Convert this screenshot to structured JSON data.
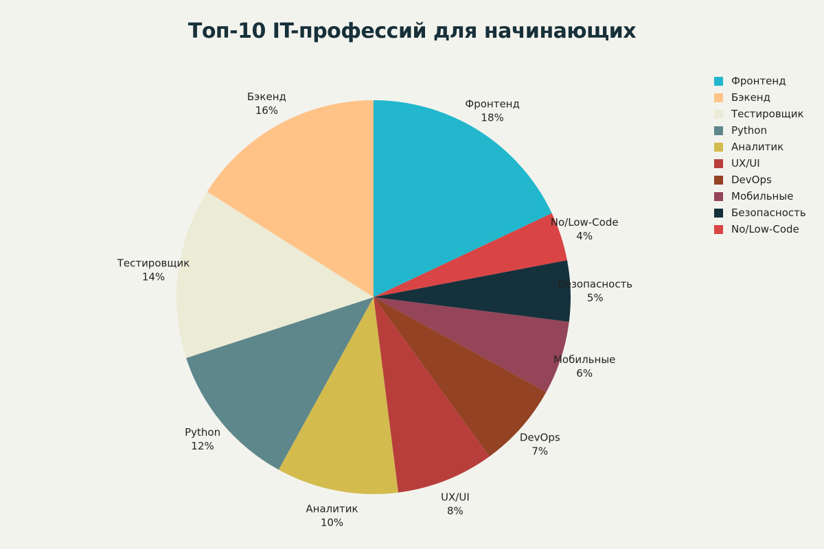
{
  "chart_data": {
    "type": "pie",
    "title": "Топ-10 IT-профессий для начинающих",
    "legend_position": "right",
    "slices": [
      {
        "label": "Фронтенд",
        "value": 18,
        "value_label": "18%",
        "color": "#22b7cd"
      },
      {
        "label": "No/Low-Code",
        "value": 4,
        "value_label": "4%",
        "color": "#d94545"
      },
      {
        "label": "Безопасность",
        "value": 5,
        "value_label": "5%",
        "color": "#15313b"
      },
      {
        "label": "Мобильные",
        "value": 6,
        "value_label": "6%",
        "color": "#944558"
      },
      {
        "label": "DevOps",
        "value": 7,
        "value_label": "7%",
        "color": "#944224"
      },
      {
        "label": "UX/UI",
        "value": 8,
        "value_label": "8%",
        "color": "#b83e3c"
      },
      {
        "label": "Аналитик",
        "value": 10,
        "value_label": "10%",
        "color": "#d3bb4e"
      },
      {
        "label": "Python",
        "value": 12,
        "value_label": "12%",
        "color": "#5e878c"
      },
      {
        "label": "Тестировщик",
        "value": 14,
        "value_label": "14%",
        "color": "#ecebd6"
      },
      {
        "label": "Бэкенд",
        "value": 16,
        "value_label": "16%",
        "color": "#ffc388"
      }
    ],
    "legend": [
      {
        "label": "Фронтенд",
        "color": "#22b7cd"
      },
      {
        "label": "Бэкенд",
        "color": "#ffc388"
      },
      {
        "label": "Тестировщик",
        "color": "#ecebd6"
      },
      {
        "label": "Python",
        "color": "#5e878c"
      },
      {
        "label": "Аналитик",
        "color": "#d3bb4e"
      },
      {
        "label": "UX/UI",
        "color": "#b83e3c"
      },
      {
        "label": "DevOps",
        "color": "#944224"
      },
      {
        "label": "Мобильные",
        "color": "#944558"
      },
      {
        "label": "Безопасность",
        "color": "#15313b"
      },
      {
        "label": "No/Low-Code",
        "color": "#d94545"
      }
    ]
  }
}
